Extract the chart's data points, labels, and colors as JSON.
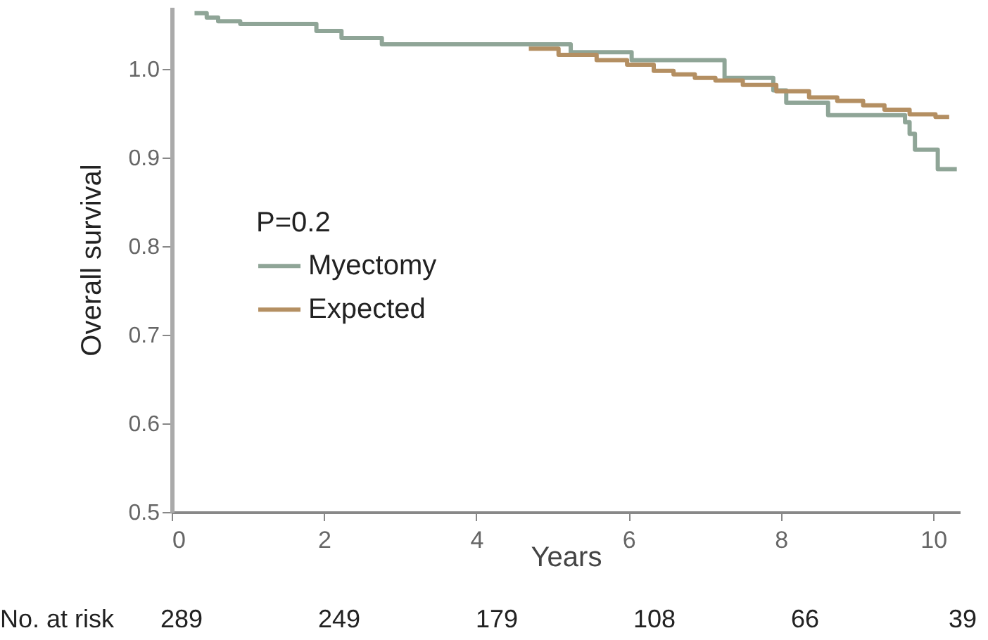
{
  "chart_data": {
    "type": "step",
    "xlabel": "Years",
    "ylabel": "Overall survival",
    "legend_title": "P=0.2",
    "legend": "left",
    "grid": false,
    "xlim": [
      0,
      10.35
    ],
    "xticks": [
      0,
      2,
      4,
      6,
      8,
      10
    ],
    "ylim": [
      0.5,
      1.07
    ],
    "yticks": [
      {
        "value": 0.5,
        "label": "0.5"
      },
      {
        "value": 0.6,
        "label": "0.6"
      },
      {
        "value": 0.7,
        "label": "0.7"
      },
      {
        "value": 0.8,
        "label": "0.8"
      },
      {
        "value": 0.9,
        "label": "0.9"
      },
      {
        "value": 1.0,
        "label": "1.0"
      }
    ],
    "series": [
      {
        "name": "Myectomy",
        "color": "#8fa597",
        "x": [
          0.3,
          0.46,
          0.61,
          0.9,
          1.9,
          2.23,
          2.76,
          5.24,
          6.04,
          7.26,
          7.9,
          8.07,
          8.62,
          9.63,
          9.69,
          9.76,
          10.06,
          10.31
        ],
        "values": [
          1.063,
          1.058,
          1.054,
          1.051,
          1.043,
          1.035,
          1.028,
          1.019,
          1.01,
          0.99,
          0.976,
          0.962,
          0.948,
          0.94,
          0.927,
          0.909,
          0.887,
          0.887
        ]
      },
      {
        "name": "Expected",
        "color": "#b48f62",
        "x": [
          4.69,
          5.08,
          5.58,
          5.98,
          6.33,
          6.59,
          6.87,
          7.14,
          7.5,
          7.94,
          8.37,
          8.74,
          9.08,
          9.36,
          9.69,
          10.03,
          10.21
        ],
        "values": [
          1.023,
          1.016,
          1.01,
          1.005,
          0.998,
          0.994,
          0.99,
          0.987,
          0.982,
          0.975,
          0.968,
          0.964,
          0.959,
          0.954,
          0.949,
          0.946,
          0.946
        ]
      }
    ],
    "annotations": [
      "No. at risk",
      "289",
      "249",
      "179",
      "108",
      "66",
      "39"
    ]
  }
}
